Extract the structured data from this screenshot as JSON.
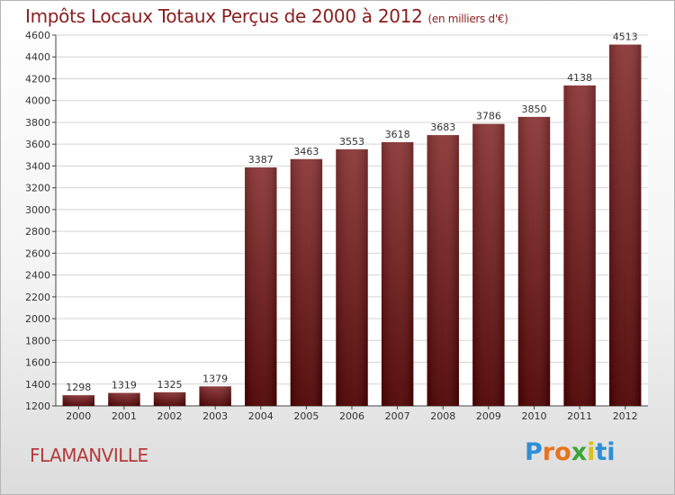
{
  "title": "Impôts Locaux Totaux Perçus de 2000 à 2012",
  "subtitle": "(en milliers d'€)",
  "town": "FLAMANVILLE",
  "logo": {
    "text": "Proxiti",
    "colors": [
      "#2e8fd6",
      "#e8731a",
      "#e8731a",
      "#3aa63a",
      "#d8c21c",
      "#2e8fd6",
      "#2e8fd6"
    ]
  },
  "colors": {
    "bar_top": "#8a3434",
    "bar_bottom": "#4d0000",
    "title": "#8a1e1e",
    "town": "#b33a3a",
    "grid": "#d4d4d4"
  },
  "chart_data": {
    "type": "bar",
    "title": "Impôts Locaux Totaux Perçus de 2000 à 2012",
    "xlabel": "",
    "ylabel": "en milliers d'€",
    "categories": [
      "2000",
      "2001",
      "2002",
      "2003",
      "2004",
      "2005",
      "2006",
      "2007",
      "2008",
      "2009",
      "2010",
      "2011",
      "2012"
    ],
    "values": [
      1298,
      1319,
      1325,
      1379,
      3387,
      3463,
      3553,
      3618,
      3683,
      3786,
      3850,
      4138,
      4513
    ],
    "ylim": [
      1200,
      4600
    ],
    "yticks": [
      1200,
      1400,
      1600,
      1800,
      2000,
      2200,
      2400,
      2600,
      2800,
      3000,
      3200,
      3400,
      3600,
      3800,
      4000,
      4200,
      4400,
      4600
    ],
    "grid": true
  }
}
